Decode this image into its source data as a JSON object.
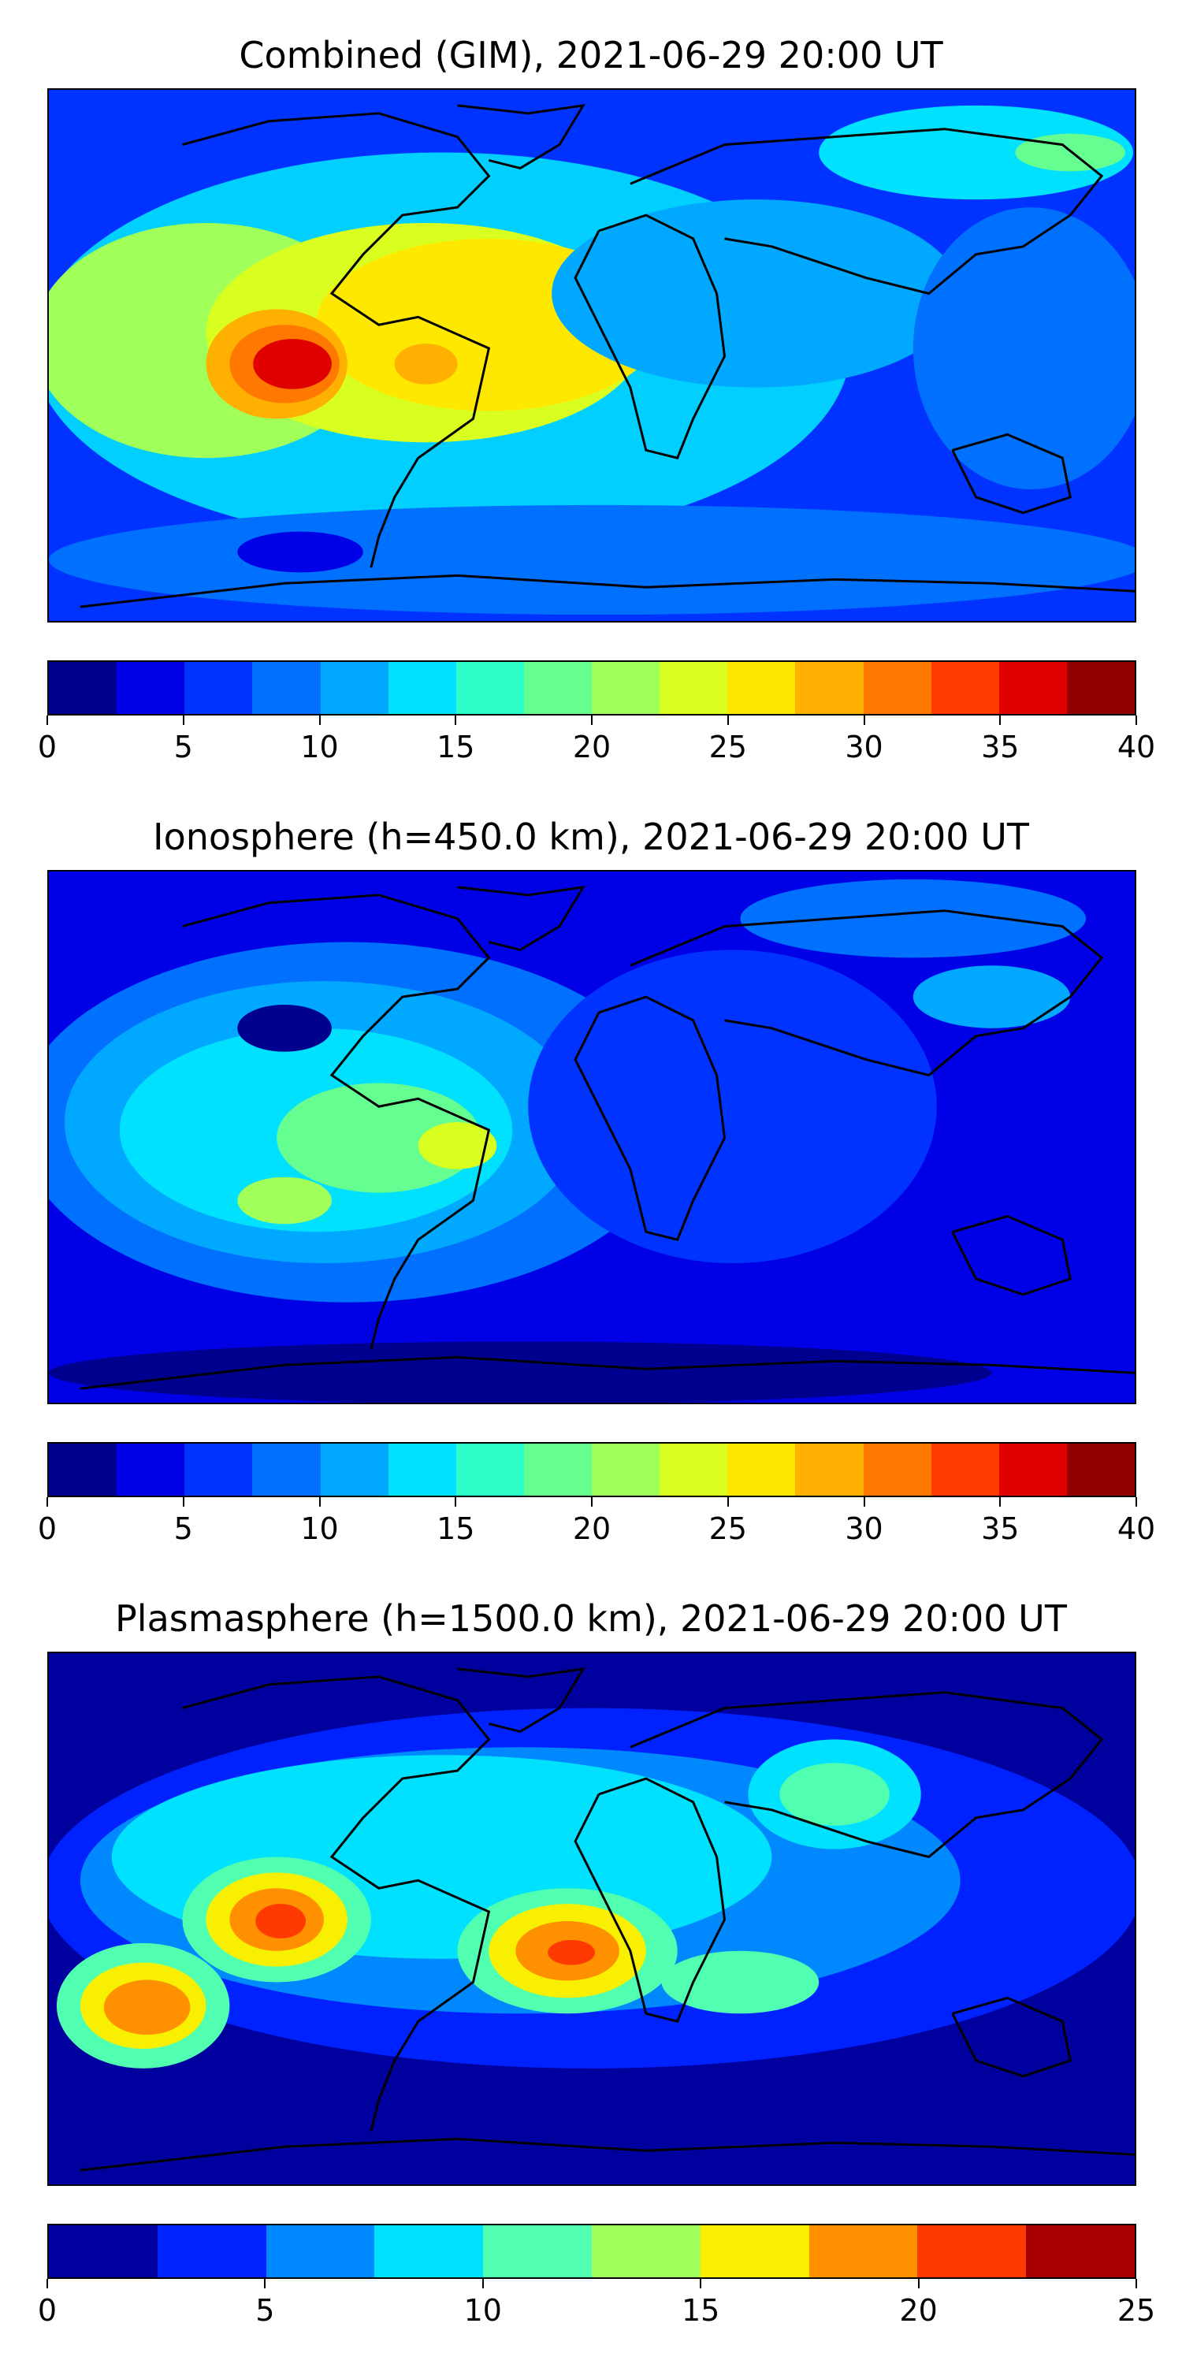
{
  "panels": [
    {
      "title": "Combined (GIM), 2021-06-29 20:00 UT",
      "colorbar": {
        "ticks": [
          "0",
          "5",
          "10",
          "15",
          "20",
          "25",
          "30",
          "35",
          "40"
        ],
        "colors": [
          "#00008f",
          "#0000e6",
          "#0033ff",
          "#0070ff",
          "#00a8ff",
          "#00e0ff",
          "#2cffc8",
          "#64ff90",
          "#a0ff58",
          "#d8ff20",
          "#ffe800",
          "#ffb000",
          "#ff7800",
          "#ff3c00",
          "#e00000",
          "#900000"
        ]
      }
    },
    {
      "title": "Ionosphere  (h=450.0 km), 2021-06-29 20:00 UT",
      "colorbar": {
        "ticks": [
          "0",
          "5",
          "10",
          "15",
          "20",
          "25",
          "30",
          "35",
          "40"
        ],
        "colors": [
          "#00008f",
          "#0000e6",
          "#0033ff",
          "#0070ff",
          "#00a8ff",
          "#00e0ff",
          "#2cffc8",
          "#64ff90",
          "#a0ff58",
          "#d8ff20",
          "#ffe800",
          "#ffb000",
          "#ff7800",
          "#ff3c00",
          "#e00000",
          "#900000"
        ]
      }
    },
    {
      "title": "Plasmasphere (h=1500.0 km), 2021-06-29 20:00 UT",
      "colorbar": {
        "ticks": [
          "0",
          "5",
          "10",
          "15",
          "20",
          "25"
        ],
        "colors": [
          "#00009f",
          "#0022ff",
          "#0088ff",
          "#00e0ff",
          "#50ffb0",
          "#a0ff58",
          "#f8f000",
          "#ff9000",
          "#ff3a00",
          "#a80000"
        ]
      }
    }
  ]
}
